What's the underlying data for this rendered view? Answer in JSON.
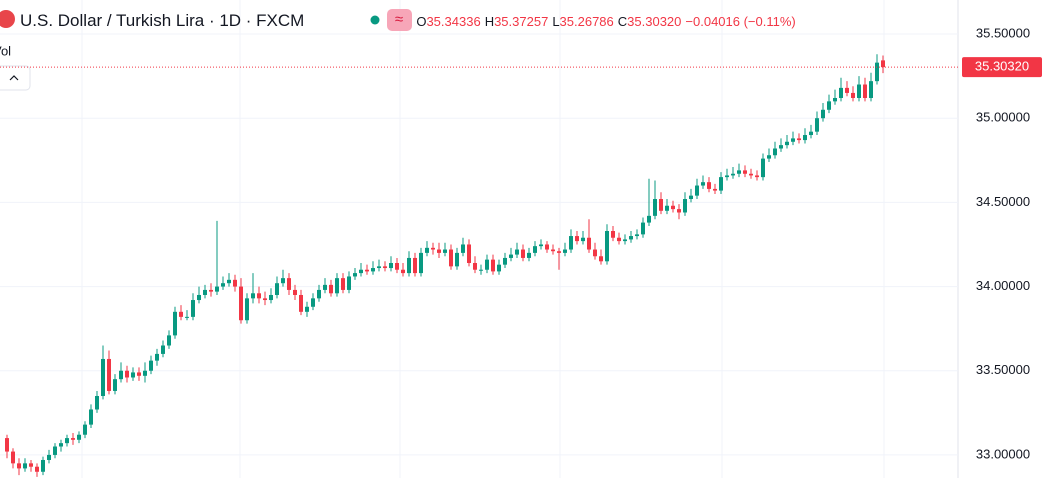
{
  "chart_data": {
    "type": "candlestick",
    "title": "U.S. Dollar / Turkish Lira · 1D · FXCM",
    "indicator": "Vol",
    "header_values": [
      {
        "label": "O",
        "value": "35.34336"
      },
      {
        "label": "H",
        "value": "35.37257"
      },
      {
        "label": "L",
        "value": "35.26786"
      },
      {
        "label": "C",
        "value": "35.30320"
      }
    ],
    "change": "−0.04016 (−0.11%)",
    "last_price": {
      "value": 35.3032,
      "label": "35.30320"
    },
    "up_color": "#089981",
    "down_color": "#f23645",
    "ylim": [
      32.863,
      35.702
    ],
    "yticks": [
      {
        "value": 33,
        "label": "33.00000"
      },
      {
        "value": 33.5,
        "label": "33.50000"
      },
      {
        "value": 34,
        "label": "34.00000"
      },
      {
        "value": 34.5,
        "label": "34.50000"
      },
      {
        "value": 35,
        "label": "35.00000"
      },
      {
        "value": 35.5,
        "label": "35.50000"
      }
    ],
    "grid": true,
    "ohlc": [
      [
        33.1,
        33.12,
        32.98,
        33.02
      ],
      [
        33.02,
        33.04,
        32.92,
        32.95
      ],
      [
        32.95,
        32.98,
        32.88,
        32.92
      ],
      [
        32.92,
        32.98,
        32.9,
        32.95
      ],
      [
        32.95,
        32.97,
        32.9,
        32.93
      ],
      [
        32.93,
        32.95,
        32.87,
        32.9
      ],
      [
        32.9,
        32.99,
        32.88,
        32.97
      ],
      [
        32.97,
        33.03,
        32.95,
        33.0
      ],
      [
        33.0,
        33.07,
        32.98,
        33.05
      ],
      [
        33.05,
        33.09,
        33.02,
        33.07
      ],
      [
        33.07,
        33.12,
        33.05,
        33.1
      ],
      [
        33.1,
        33.13,
        33.06,
        33.09
      ],
      [
        33.09,
        33.14,
        33.07,
        33.12
      ],
      [
        33.12,
        33.2,
        33.1,
        33.18
      ],
      [
        33.18,
        33.3,
        33.16,
        33.27
      ],
      [
        33.27,
        33.38,
        33.25,
        33.35
      ],
      [
        33.35,
        33.65,
        33.33,
        33.57
      ],
      [
        33.57,
        33.62,
        33.36,
        33.38
      ],
      [
        33.38,
        33.48,
        33.36,
        33.45
      ],
      [
        33.45,
        33.55,
        33.43,
        33.5
      ],
      [
        33.5,
        33.53,
        33.43,
        33.46
      ],
      [
        33.46,
        33.52,
        33.44,
        33.49
      ],
      [
        33.49,
        33.52,
        33.44,
        33.47
      ],
      [
        33.47,
        33.55,
        33.43,
        33.5
      ],
      [
        33.5,
        33.59,
        33.48,
        33.56
      ],
      [
        33.56,
        33.63,
        33.53,
        33.6
      ],
      [
        33.6,
        33.68,
        33.58,
        33.65
      ],
      [
        33.65,
        33.74,
        33.63,
        33.71
      ],
      [
        33.71,
        33.88,
        33.69,
        33.85
      ],
      [
        33.85,
        33.89,
        33.8,
        33.82
      ],
      [
        33.82,
        33.86,
        33.8,
        33.82
      ],
      [
        33.82,
        33.96,
        33.8,
        33.92
      ],
      [
        33.92,
        34.0,
        33.9,
        33.95
      ],
      [
        33.95,
        34.01,
        33.93,
        33.98
      ],
      [
        33.98,
        34.02,
        33.94,
        33.97
      ],
      [
        33.97,
        34.39,
        33.95,
        34.0
      ],
      [
        34.0,
        34.06,
        33.98,
        34.02
      ],
      [
        34.02,
        34.08,
        34.0,
        34.04
      ],
      [
        34.04,
        34.07,
        33.97,
        34.0
      ],
      [
        34.0,
        34.05,
        33.78,
        33.8
      ],
      [
        33.8,
        33.96,
        33.78,
        33.93
      ],
      [
        33.93,
        34.08,
        33.9,
        33.96
      ],
      [
        33.96,
        34.0,
        33.9,
        33.93
      ],
      [
        33.93,
        33.97,
        33.89,
        33.92
      ],
      [
        33.92,
        33.99,
        33.9,
        33.95
      ],
      [
        33.95,
        34.06,
        33.93,
        34.02
      ],
      [
        34.02,
        34.1,
        34.0,
        34.05
      ],
      [
        34.05,
        34.08,
        33.95,
        33.98
      ],
      [
        33.98,
        34.01,
        33.92,
        33.95
      ],
      [
        33.95,
        33.98,
        33.83,
        33.85
      ],
      [
        33.85,
        33.91,
        33.82,
        33.88
      ],
      [
        33.88,
        33.96,
        33.86,
        33.93
      ],
      [
        33.93,
        34.01,
        33.91,
        33.98
      ],
      [
        33.98,
        34.05,
        33.96,
        34.01
      ],
      [
        34.01,
        34.04,
        33.94,
        33.96
      ],
      [
        33.96,
        34.08,
        33.94,
        34.05
      ],
      [
        34.05,
        34.08,
        33.96,
        33.98
      ],
      [
        33.98,
        34.09,
        33.96,
        34.06
      ],
      [
        34.06,
        34.11,
        34.04,
        34.08
      ],
      [
        34.08,
        34.14,
        34.06,
        34.1
      ],
      [
        34.1,
        34.13,
        34.07,
        34.09
      ],
      [
        34.09,
        34.15,
        34.07,
        34.11
      ],
      [
        34.11,
        34.16,
        34.09,
        34.12
      ],
      [
        34.12,
        34.15,
        34.09,
        34.11
      ],
      [
        34.11,
        34.18,
        34.09,
        34.14
      ],
      [
        34.14,
        34.17,
        34.08,
        34.1
      ],
      [
        34.1,
        34.14,
        34.06,
        34.08
      ],
      [
        34.08,
        34.21,
        34.06,
        34.17
      ],
      [
        34.17,
        34.2,
        34.06,
        34.08
      ],
      [
        34.08,
        34.23,
        34.06,
        34.2
      ],
      [
        34.2,
        34.27,
        34.18,
        34.23
      ],
      [
        34.23,
        34.26,
        34.19,
        34.22
      ],
      [
        34.22,
        34.26,
        34.17,
        34.2
      ],
      [
        34.2,
        34.26,
        34.18,
        34.22
      ],
      [
        34.22,
        34.25,
        34.1,
        34.12
      ],
      [
        34.12,
        34.23,
        34.1,
        34.2
      ],
      [
        34.2,
        34.29,
        34.18,
        34.25
      ],
      [
        34.25,
        34.28,
        34.12,
        34.14
      ],
      [
        34.14,
        34.18,
        34.08,
        34.1
      ],
      [
        34.1,
        34.13,
        34.07,
        34.1
      ],
      [
        34.1,
        34.19,
        34.08,
        34.16
      ],
      [
        34.16,
        34.19,
        34.07,
        34.09
      ],
      [
        34.09,
        34.16,
        34.07,
        34.13
      ],
      [
        34.13,
        34.2,
        34.11,
        34.17
      ],
      [
        34.17,
        34.23,
        34.15,
        34.19
      ],
      [
        34.19,
        34.26,
        34.17,
        34.22
      ],
      [
        34.22,
        34.25,
        34.15,
        34.17
      ],
      [
        34.17,
        34.23,
        34.15,
        34.2
      ],
      [
        34.2,
        34.27,
        34.18,
        34.24
      ],
      [
        34.24,
        34.28,
        34.22,
        34.25
      ],
      [
        34.25,
        34.27,
        34.2,
        34.22
      ],
      [
        34.22,
        34.25,
        34.19,
        34.21
      ],
      [
        34.21,
        34.23,
        34.1,
        34.2
      ],
      [
        34.2,
        34.26,
        34.18,
        34.22
      ],
      [
        34.22,
        34.34,
        34.2,
        34.3
      ],
      [
        34.3,
        34.33,
        34.25,
        34.27
      ],
      [
        34.27,
        34.33,
        34.25,
        34.29
      ],
      [
        34.29,
        34.4,
        34.2,
        34.22
      ],
      [
        34.22,
        34.26,
        34.16,
        34.18
      ],
      [
        34.18,
        34.22,
        34.13,
        34.15
      ],
      [
        34.15,
        34.37,
        34.13,
        34.33
      ],
      [
        34.33,
        34.36,
        34.27,
        34.29
      ],
      [
        34.29,
        34.32,
        34.25,
        34.27
      ],
      [
        34.27,
        34.31,
        34.25,
        34.28
      ],
      [
        34.28,
        34.33,
        34.26,
        34.3
      ],
      [
        34.3,
        34.34,
        34.28,
        34.31
      ],
      [
        34.31,
        34.41,
        34.29,
        34.38
      ],
      [
        34.38,
        34.64,
        34.36,
        34.42
      ],
      [
        34.42,
        34.63,
        34.4,
        34.52
      ],
      [
        34.52,
        34.56,
        34.43,
        34.45
      ],
      [
        34.45,
        34.52,
        34.43,
        34.48
      ],
      [
        34.48,
        34.51,
        34.44,
        34.46
      ],
      [
        34.46,
        34.49,
        34.4,
        34.44
      ],
      [
        34.44,
        34.56,
        34.42,
        34.52
      ],
      [
        34.52,
        34.58,
        34.5,
        34.54
      ],
      [
        34.54,
        34.64,
        34.52,
        34.6
      ],
      [
        34.6,
        34.66,
        34.58,
        34.62
      ],
      [
        34.62,
        34.65,
        34.56,
        34.58
      ],
      [
        34.58,
        34.61,
        34.55,
        34.57
      ],
      [
        34.57,
        34.68,
        34.55,
        34.65
      ],
      [
        34.65,
        34.7,
        34.63,
        34.66
      ],
      [
        34.66,
        34.71,
        34.64,
        34.67
      ],
      [
        34.67,
        34.73,
        34.65,
        34.69
      ],
      [
        34.69,
        34.72,
        34.65,
        34.67
      ],
      [
        34.67,
        34.7,
        34.64,
        34.66
      ],
      [
        34.66,
        34.69,
        34.63,
        34.65
      ],
      [
        34.65,
        34.79,
        34.63,
        34.76
      ],
      [
        34.76,
        34.82,
        34.74,
        34.78
      ],
      [
        34.78,
        34.86,
        34.76,
        34.82
      ],
      [
        34.82,
        34.88,
        34.8,
        34.84
      ],
      [
        34.84,
        34.9,
        34.82,
        34.86
      ],
      [
        34.86,
        34.92,
        34.84,
        34.88
      ],
      [
        34.88,
        34.91,
        34.85,
        34.87
      ],
      [
        34.87,
        34.94,
        34.85,
        34.9
      ],
      [
        34.9,
        34.96,
        34.88,
        34.92
      ],
      [
        34.92,
        35.04,
        34.9,
        35.0
      ],
      [
        35.0,
        35.09,
        34.98,
        35.05
      ],
      [
        35.05,
        35.14,
        35.03,
        35.1
      ],
      [
        35.1,
        35.17,
        35.08,
        35.12
      ],
      [
        35.12,
        35.24,
        35.1,
        35.18
      ],
      [
        35.18,
        35.22,
        35.13,
        35.15
      ],
      [
        35.15,
        35.19,
        35.1,
        35.12
      ],
      [
        35.12,
        35.25,
        35.1,
        35.2
      ],
      [
        35.2,
        35.24,
        35.1,
        35.12
      ],
      [
        35.12,
        35.27,
        35.1,
        35.22
      ],
      [
        35.22,
        35.38,
        35.2,
        35.33
      ],
      [
        35.34336,
        35.37257,
        35.26786,
        35.3032
      ]
    ]
  }
}
